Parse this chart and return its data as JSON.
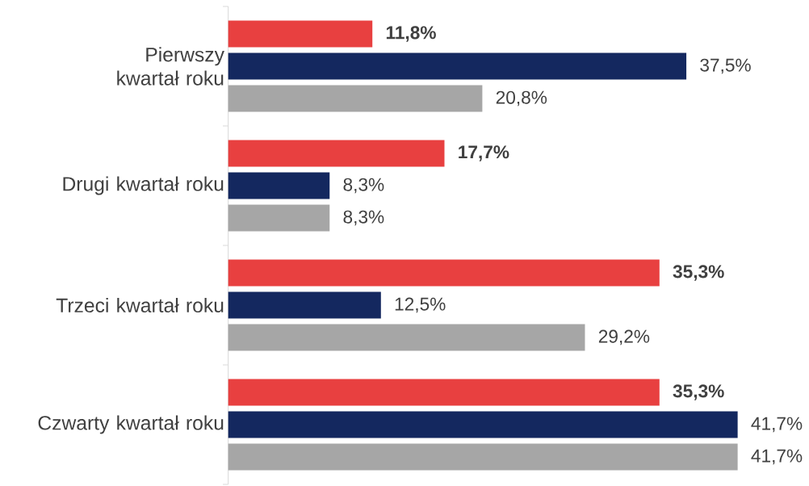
{
  "chart_data": {
    "type": "bar",
    "orientation": "horizontal",
    "categories": [
      "Pierwszy kwartał roku",
      "Drugi kwartał roku",
      "Trzeci kwartał roku",
      "Czwarty kwartał roku"
    ],
    "series": [
      {
        "color": "#e84040",
        "values": [
          11.8,
          17.7,
          35.3,
          35.3
        ],
        "value_labels": [
          "**11,8%**",
          "**17,7%**",
          "**35,3%**",
          "**35,3%**"
        ]
      },
      {
        "color": "#14285f",
        "values": [
          37.5,
          8.3,
          12.5,
          41.7
        ],
        "value_labels": [
          "37,5%",
          "8,3%",
          "12,5%",
          "41,7%"
        ]
      },
      {
        "color": "#a6a6a6",
        "values": [
          20.8,
          8.3,
          29.2,
          41.7
        ],
        "value_labels": [
          "20,8%",
          "8,3%",
          "29,2%",
          "41,7%"
        ]
      }
    ],
    "stacked": false
  }
}
